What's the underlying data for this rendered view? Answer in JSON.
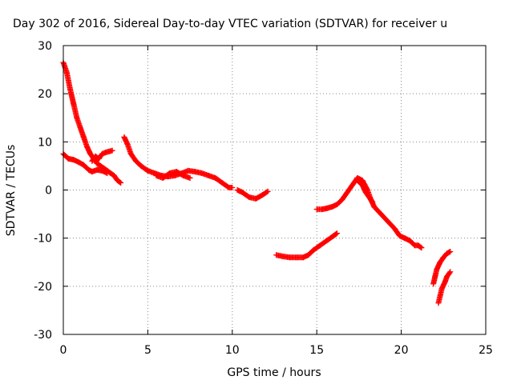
{
  "chart_data": {
    "type": "scatter",
    "title": "Day 302 of 2016, Sidereal Day-to-day VTEC variation (SDTVAR) for receiver u",
    "xlabel": "GPS time / hours",
    "ylabel": "SDTVAR / TECUs",
    "xlim": [
      0,
      25
    ],
    "ylim": [
      -30,
      30
    ],
    "x_ticks": [
      0,
      5,
      10,
      15,
      20,
      25
    ],
    "y_ticks": [
      -30,
      -20,
      -10,
      0,
      10,
      20,
      30
    ],
    "x_tick_labels": [
      "0",
      "5",
      "10",
      "15",
      "20",
      "25"
    ],
    "y_tick_labels": [
      "-30",
      "-20",
      "-10",
      "0",
      "10",
      "20",
      "30"
    ],
    "grid": true,
    "legend": "none",
    "marker": "plus",
    "series_color": "#ff0000",
    "series": [
      {
        "points": [
          [
            0.0,
            26.5
          ],
          [
            0.2,
            24.5
          ],
          [
            0.4,
            21
          ],
          [
            0.6,
            18
          ],
          [
            0.8,
            15
          ],
          [
            1.0,
            13
          ],
          [
            1.2,
            11
          ],
          [
            1.4,
            9
          ],
          [
            1.6,
            7.5
          ],
          [
            1.8,
            6.5
          ],
          [
            2.0,
            5.5
          ],
          [
            2.2,
            5
          ],
          [
            2.4,
            4.5
          ],
          [
            2.6,
            4
          ],
          [
            2.8,
            3.5
          ],
          [
            3.0,
            3
          ],
          [
            3.2,
            2
          ],
          [
            3.4,
            1.5
          ]
        ]
      },
      {
        "points": [
          [
            0.0,
            7.5
          ],
          [
            0.3,
            6.5
          ],
          [
            0.6,
            6.3
          ],
          [
            0.9,
            5.8
          ],
          [
            1.2,
            5.2
          ],
          [
            1.5,
            4.2
          ],
          [
            1.7,
            3.8
          ],
          [
            2.0,
            4.2
          ],
          [
            2.3,
            4.0
          ],
          [
            2.6,
            3.5
          ]
        ]
      },
      {
        "points": [
          [
            1.7,
            6
          ],
          [
            1.9,
            7
          ],
          [
            2.1,
            6.5
          ],
          [
            2.3,
            7.5
          ],
          [
            2.5,
            7.8
          ],
          [
            2.7,
            8
          ],
          [
            2.9,
            8.2
          ]
        ]
      },
      {
        "points": [
          [
            3.6,
            11
          ],
          [
            3.8,
            9.5
          ],
          [
            4.0,
            7.5
          ],
          [
            4.3,
            6
          ],
          [
            4.6,
            5
          ],
          [
            5.0,
            4
          ],
          [
            5.4,
            3.5
          ],
          [
            5.8,
            3
          ],
          [
            6.2,
            2.8
          ],
          [
            6.6,
            3
          ],
          [
            7.0,
            3.5
          ],
          [
            7.4,
            4
          ],
          [
            7.8,
            3.8
          ],
          [
            8.2,
            3.5
          ],
          [
            8.6,
            3
          ],
          [
            9.0,
            2.5
          ],
          [
            9.4,
            1.5
          ],
          [
            9.8,
            0.5
          ],
          [
            10.0,
            0.5
          ]
        ]
      },
      {
        "points": [
          [
            5.5,
            3
          ],
          [
            5.9,
            2.5
          ],
          [
            6.3,
            3.5
          ],
          [
            6.7,
            3.8
          ],
          [
            7.1,
            3
          ],
          [
            7.5,
            2.5
          ]
        ]
      },
      {
        "points": [
          [
            10.3,
            0
          ],
          [
            10.6,
            -0.5
          ],
          [
            11.0,
            -1.5
          ],
          [
            11.4,
            -1.8
          ],
          [
            11.8,
            -1
          ],
          [
            12.1,
            -0.3
          ]
        ]
      },
      {
        "points": [
          [
            12.6,
            -13.5
          ],
          [
            13.0,
            -13.8
          ],
          [
            13.4,
            -14
          ],
          [
            13.8,
            -14
          ],
          [
            14.2,
            -14
          ],
          [
            14.5,
            -13.5
          ],
          [
            14.8,
            -12.5
          ],
          [
            15.2,
            -11.5
          ],
          [
            15.6,
            -10.5
          ],
          [
            16.0,
            -9.5
          ],
          [
            16.2,
            -9
          ]
        ]
      },
      {
        "points": [
          [
            15.0,
            -4
          ],
          [
            15.3,
            -4
          ],
          [
            15.6,
            -3.8
          ],
          [
            15.9,
            -3.5
          ],
          [
            16.2,
            -3
          ],
          [
            16.5,
            -2
          ],
          [
            16.8,
            -0.5
          ],
          [
            17.1,
            1
          ],
          [
            17.4,
            2.5
          ],
          [
            17.7,
            2
          ],
          [
            18.0,
            0
          ],
          [
            18.2,
            -2
          ],
          [
            18.4,
            -3.5
          ]
        ]
      },
      {
        "points": [
          [
            17.4,
            2
          ],
          [
            17.7,
            1
          ],
          [
            17.9,
            -0.5
          ],
          [
            18.1,
            -1.5
          ],
          [
            18.3,
            -2.5
          ]
        ]
      },
      {
        "points": [
          [
            18.4,
            -3.5
          ],
          [
            18.8,
            -5
          ],
          [
            19.2,
            -6.5
          ],
          [
            19.6,
            -8
          ],
          [
            19.9,
            -9.5
          ],
          [
            20.2,
            -10
          ],
          [
            20.5,
            -10.5
          ],
          [
            20.8,
            -11.5
          ],
          [
            21.0,
            -11.5
          ],
          [
            21.2,
            -12
          ]
        ]
      },
      {
        "points": [
          [
            21.9,
            -19.5
          ],
          [
            22.0,
            -18
          ],
          [
            22.1,
            -16.5
          ],
          [
            22.3,
            -15
          ],
          [
            22.5,
            -14
          ],
          [
            22.7,
            -13.2
          ],
          [
            22.9,
            -12.8
          ]
        ]
      },
      {
        "points": [
          [
            22.2,
            -23.5
          ],
          [
            22.3,
            -22
          ],
          [
            22.4,
            -20.5
          ],
          [
            22.6,
            -19
          ],
          [
            22.7,
            -18
          ],
          [
            22.9,
            -17
          ]
        ]
      }
    ]
  }
}
